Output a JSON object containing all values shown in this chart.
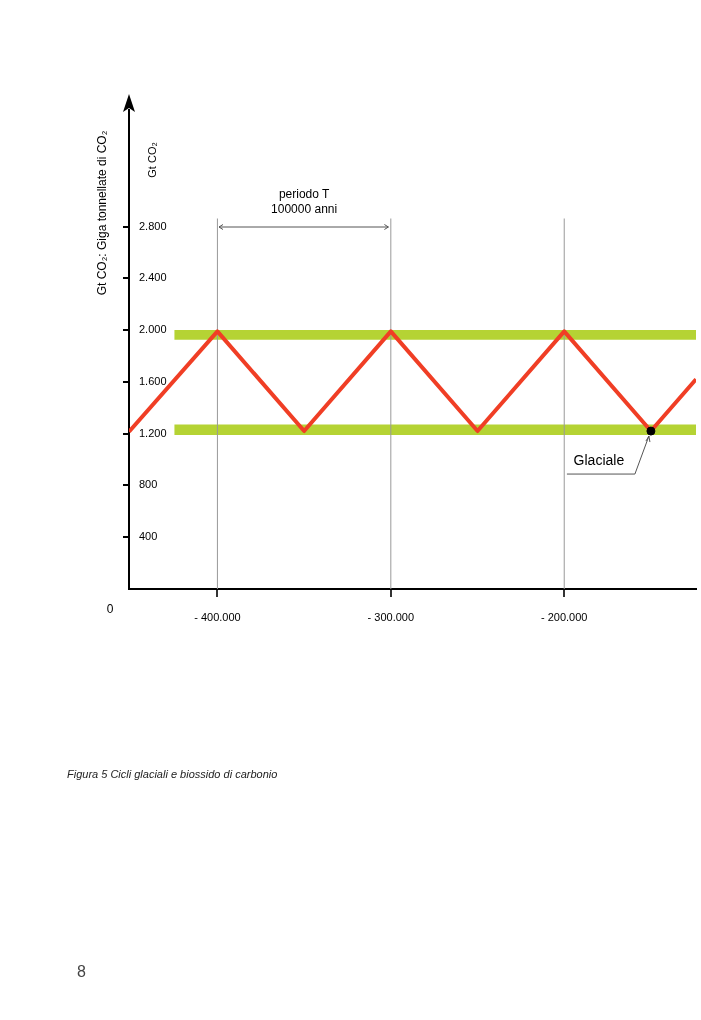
{
  "chart_data": {
    "type": "line",
    "ylabel": "Gt CO₂: Giga tonnellate di CO₂",
    "xlim": [
      -451000,
      -124000
    ],
    "xticks": [
      {
        "value": -400000,
        "label": "- 400.000"
      },
      {
        "value": -300000,
        "label": "- 300.000"
      },
      {
        "value": -200000,
        "label": "- 200.000"
      }
    ],
    "ylim": [
      0,
      3700
    ],
    "yticks": [
      400,
      800,
      {
        "value": 1200,
        "label": "1.200"
      },
      {
        "value": 1600,
        "label": "1.600"
      },
      {
        "value": 2000,
        "label": "2.000"
      },
      {
        "value": 2400,
        "label": "2.400"
      },
      {
        "value": 2800,
        "label": "2.800"
      }
    ],
    "series": [
      {
        "color": "#f03e25",
        "x": [
          -451000,
          -400000,
          -350000,
          -300000,
          -250000,
          -200000,
          -150000,
          -124000
        ],
        "values": [
          1215,
          1990,
          1220,
          1990,
          1220,
          1990,
          1220,
          1620
        ]
      },
      {
        "type": "scatter",
        "color": "#000000",
        "x": [
          -150000
        ],
        "values": [
          1220
        ]
      }
    ],
    "bands": [
      {
        "axis": "y",
        "from": 1925,
        "to": 2000,
        "color": "#b5d334"
      },
      {
        "axis": "y",
        "from": 1190,
        "to": 1270,
        "color": "#b5d334"
      }
    ],
    "ref_lines": [
      {
        "axis": "x",
        "value": -400000,
        "color": "#999999"
      },
      {
        "axis": "x",
        "value": -300000,
        "color": "#999999"
      },
      {
        "axis": "x",
        "value": -200000,
        "color": "#999999"
      }
    ],
    "annotations": [
      "periodo T\n100000 anni",
      {
        "text": "Glaciale",
        "x": -150000,
        "y": 1220
      },
      "Gt CO₂",
      "0",
      "Figura 5  Cicli glaciali e biossido di carbonio",
      "8"
    ],
    "grid": false,
    "legend": false,
    "line_style": "solid"
  }
}
